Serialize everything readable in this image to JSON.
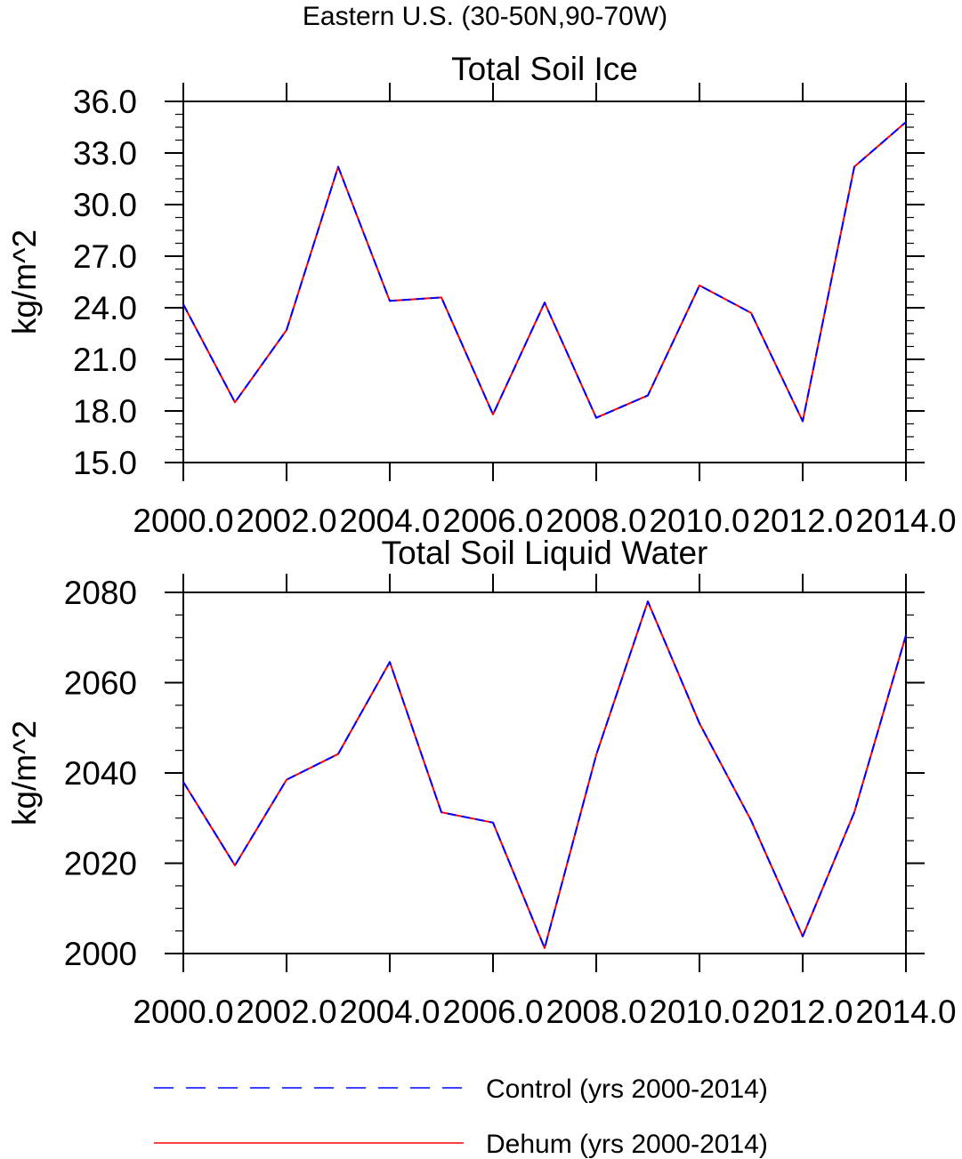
{
  "figure_title": "Eastern U.S. (30-50N,90-70W)",
  "legend": {
    "items": [
      {
        "label": "Control (yrs 2000-2014)",
        "color": "#0000ff",
        "dashed": true
      },
      {
        "label": "Dehum (yrs 2000-2014)",
        "color": "#ff0000",
        "dashed": false
      }
    ]
  },
  "chart_data": [
    {
      "type": "line",
      "title": "Total Soil Ice",
      "xlabel": "",
      "ylabel": "kg/m^2",
      "x": [
        2000,
        2001,
        2002,
        2003,
        2004,
        2005,
        2006,
        2007,
        2008,
        2009,
        2010,
        2011,
        2012,
        2013,
        2014
      ],
      "xlim": [
        2000,
        2014
      ],
      "ylim": [
        15,
        36
      ],
      "x_ticks": [
        2000,
        2002,
        2004,
        2006,
        2008,
        2010,
        2012,
        2014
      ],
      "x_tick_labels": [
        "2000.0",
        "2002.0",
        "2004.0",
        "2006.0",
        "2008.0",
        "2010.0",
        "2012.0",
        "2014.0"
      ],
      "y_ticks": [
        15,
        18,
        21,
        24,
        27,
        30,
        33,
        36
      ],
      "y_tick_labels": [
        "15.0",
        "18.0",
        "21.0",
        "24.0",
        "27.0",
        "30.0",
        "33.0",
        "36.0"
      ],
      "y_minor_step": 0.75,
      "series": [
        {
          "name": "Control (yrs 2000-2014)",
          "color": "#0000ff",
          "values": [
            24.2,
            18.5,
            22.7,
            32.2,
            24.4,
            24.6,
            17.8,
            24.3,
            17.6,
            18.9,
            25.3,
            23.7,
            17.4,
            32.2,
            34.8
          ]
        },
        {
          "name": "Dehum (yrs 2000-2014)",
          "color": "#ff0000",
          "values": [
            24.2,
            18.5,
            22.7,
            32.2,
            24.4,
            24.6,
            17.8,
            24.3,
            17.6,
            18.9,
            25.3,
            23.7,
            17.4,
            32.2,
            34.8
          ]
        }
      ]
    },
    {
      "type": "line",
      "title": "Total Soil Liquid Water",
      "xlabel": "",
      "ylabel": "kg/m^2",
      "x": [
        2000,
        2001,
        2002,
        2003,
        2004,
        2005,
        2006,
        2007,
        2008,
        2009,
        2010,
        2011,
        2012,
        2013,
        2014
      ],
      "xlim": [
        2000,
        2014
      ],
      "ylim": [
        2000,
        2080
      ],
      "x_ticks": [
        2000,
        2002,
        2004,
        2006,
        2008,
        2010,
        2012,
        2014
      ],
      "x_tick_labels": [
        "2000.0",
        "2002.0",
        "2004.0",
        "2006.0",
        "2008.0",
        "2010.0",
        "2012.0",
        "2014.0"
      ],
      "y_ticks": [
        2000,
        2020,
        2040,
        2060,
        2080
      ],
      "y_tick_labels": [
        "2000",
        "2020",
        "2040",
        "2060",
        "2080"
      ],
      "y_minor_step": 5,
      "series": [
        {
          "name": "Control (yrs 2000-2014)",
          "color": "#0000ff",
          "values": [
            2038,
            2019.5,
            2038.5,
            2044.2,
            2064.6,
            2031.3,
            2029,
            2001.2,
            2044,
            2078,
            2051,
            2029.5,
            2003.8,
            2031.3,
            2070.5
          ]
        },
        {
          "name": "Dehum (yrs 2000-2014)",
          "color": "#ff0000",
          "values": [
            2038,
            2019.5,
            2038.5,
            2044.2,
            2064.6,
            2031.3,
            2029,
            2001.2,
            2044,
            2078,
            2051,
            2029.5,
            2003.8,
            2031.3,
            2070.5
          ]
        }
      ]
    }
  ]
}
